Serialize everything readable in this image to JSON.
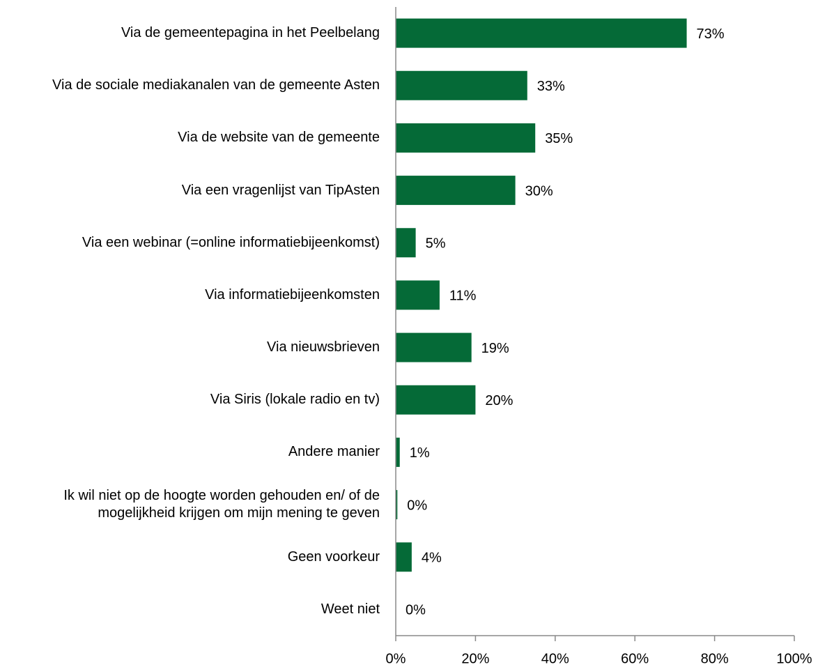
{
  "chart_data": {
    "type": "bar",
    "orientation": "horizontal",
    "categories": [
      "Via de gemeentepagina in het Peelbelang",
      "Via de sociale mediakanalen van de gemeente Asten",
      "Via de website van de gemeente",
      "Via een vragenlijst van TipAsten",
      "Via een webinar (=online informatiebijeenkomst)",
      "Via informatiebijeenkomsten",
      "Via nieuwsbrieven",
      "Via Siris (lokale radio en tv)",
      "Andere manier",
      "Ik wil niet op de hoogte worden gehouden en/ of de mogelijkheid krijgen om mijn mening te geven",
      "Geen voorkeur",
      "Weet niet"
    ],
    "values": [
      73,
      33,
      35,
      30,
      5,
      11,
      19,
      20,
      1,
      0.4,
      4,
      0
    ],
    "value_labels": [
      "73%",
      "33%",
      "35%",
      "30%",
      "5%",
      "11%",
      "19%",
      "20%",
      "1%",
      "0%",
      "4%",
      "0%"
    ],
    "color": "#056a37",
    "xlim": [
      0,
      100
    ],
    "xticks": [
      {
        "value": 0,
        "label": "0%"
      },
      {
        "value": 20,
        "label": "20%"
      },
      {
        "value": 40,
        "label": "40%"
      },
      {
        "value": 60,
        "label": "60%"
      },
      {
        "value": 80,
        "label": "80%"
      },
      {
        "value": 100,
        "label": "100%"
      }
    ],
    "grid": false
  }
}
